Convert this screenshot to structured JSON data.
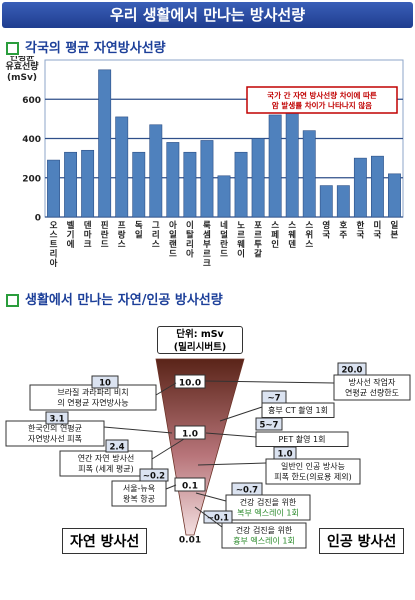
{
  "title": "우리 생활에서 만나는 방사선량",
  "section1_title": "각국의 평균 자연방사선량",
  "section2_title": "생활에서 만나는 자연/인공 방사선량",
  "chart_data": [
    {
      "type": "bar",
      "ylabel_lines": [
        "연평균",
        "유효선량",
        "(mSv)"
      ],
      "ylim": [
        0,
        800
      ],
      "yticks": [
        0,
        200,
        400,
        600
      ],
      "annotation_lines": [
        "국가 간 자연 방사선량 차이에 따른",
        "암 발생률 차이가 나타나지 않음"
      ],
      "categories": [
        "오스트리아",
        "벨기에",
        "덴마크",
        "핀란드",
        "프랑스",
        "독일",
        "그리스",
        "아일랜드",
        "이탈리아",
        "룩셈부르크",
        "네덜란드",
        "노르웨이",
        "포르투갈",
        "스페인",
        "스웨덴",
        "스위스",
        "영국",
        "호주",
        "한국",
        "미국",
        "일본"
      ],
      "values": [
        290,
        330,
        340,
        750,
        510,
        330,
        470,
        380,
        330,
        390,
        210,
        330,
        400,
        520,
        600,
        440,
        160,
        160,
        300,
        310,
        220
      ],
      "bar_color": "#4f81bd"
    },
    {
      "type": "scale",
      "unit_lines": [
        "단위: mSv",
        "(밀리시버트)"
      ],
      "cone_values": [
        "10.0",
        "1.0",
        "0.1",
        "0.01"
      ],
      "natural_label": "자연 방사선",
      "artificial_label": "인공 방사선",
      "natural": [
        {
          "value": "10",
          "lines": [
            "브라질 과라파리 비치",
            "의 연평균 자연방사능"
          ]
        },
        {
          "value": "3.1",
          "lines": [
            "한국인의 연평균",
            "자연방사선 피폭"
          ]
        },
        {
          "value": "2.4",
          "lines": [
            "연간 자연 방사선",
            "피폭 (세계 평균)"
          ]
        },
        {
          "value": "~0.2",
          "lines": [
            "서울-뉴욕",
            "왕복 항공"
          ]
        }
      ],
      "artificial": [
        {
          "value": "20.0",
          "lines": [
            "방사선 작업자",
            "연평균 선량한도"
          ]
        },
        {
          "value": "~7",
          "lines": [
            "흉부 CT 촬영 1회"
          ]
        },
        {
          "value": "5~7",
          "lines": [
            "PET 촬영 1회"
          ]
        },
        {
          "value": "1.0",
          "lines": [
            "일반인 인공 방사능",
            "피폭 한도(의료용 제외)"
          ]
        },
        {
          "value": "~0.7",
          "lines": [
            "건강 검진을 위한",
            "복부 엑스레이 1회"
          ]
        },
        {
          "value": "~0.1",
          "lines": [
            "건강 검진을 위한",
            "흉부 엑스레이 1회"
          ]
        }
      ]
    }
  ]
}
